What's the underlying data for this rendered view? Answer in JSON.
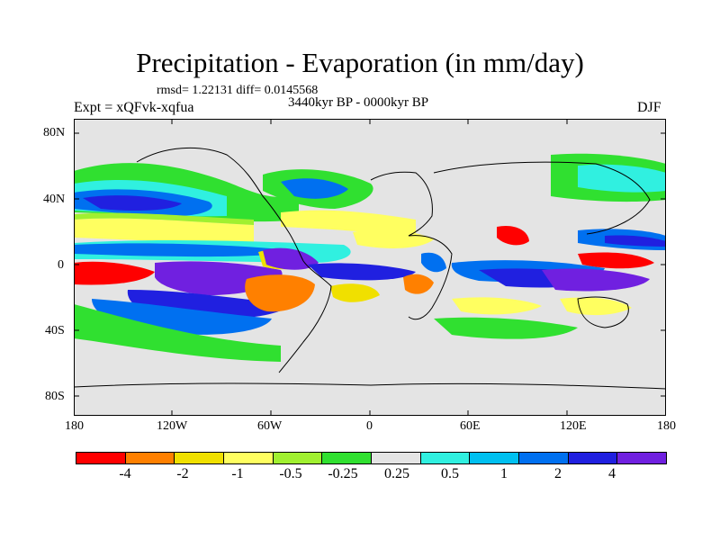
{
  "title": "Precipitation - Evaporation (in mm/day)",
  "stats": "rmsd= 1.22131 diff= 0.0145568",
  "period": "3440kyr BP - 0000kyr BP",
  "experiment": "Expt = xQFvk-xqfua",
  "season": "DJF",
  "map": {
    "lat_labels": [
      "80N",
      "40N",
      "0",
      "40S",
      "80S"
    ],
    "lon_labels": [
      "180",
      "120W",
      "60W",
      "0",
      "60E",
      "120E",
      "180"
    ],
    "land_color": "#e4e4e4",
    "coastline_color": "#000000"
  },
  "colorbar": {
    "colors": [
      "#ff0000",
      "#ff8000",
      "#f0e000",
      "#ffff60",
      "#a0f030",
      "#30e030",
      "#e4e4e4",
      "#30f0e0",
      "#00c0f0",
      "#0070f0",
      "#2020e0",
      "#7020e0"
    ],
    "labels": [
      "-4",
      "-2",
      "-1",
      "-0.5",
      "-0.25",
      "0.25",
      "0.5",
      "1",
      "2",
      "4"
    ]
  }
}
